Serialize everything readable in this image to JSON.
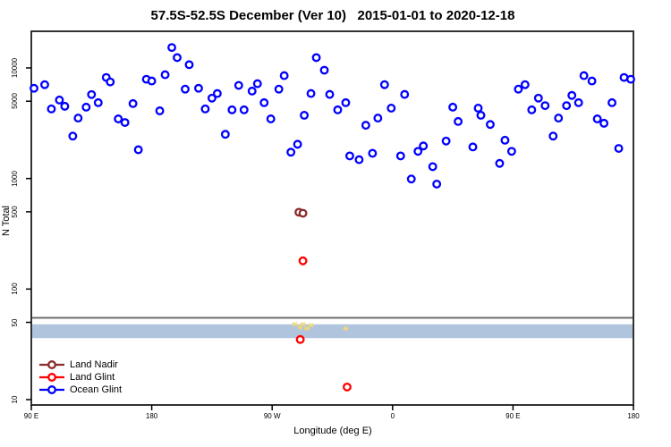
{
  "title": "57.5S-52.5S December (Ver 10)   2015-01-01 to 2020-12-18",
  "legend": {
    "items": [
      {
        "label": "Land Nadir",
        "color": "#8B2B2B"
      },
      {
        "label": "Land Glint",
        "color": "#FF0000"
      },
      {
        "label": "Ocean Glint",
        "color": "#0000FF"
      }
    ]
  },
  "chart_data": {
    "type": "scatter",
    "title": "57.5S-52.5S December (Ver 10)   2015-01-01 to 2020-12-18",
    "xlabel": "Longitude (deg E)",
    "ylabel": "N Total",
    "y_scale": "log10",
    "ylim": [
      9,
      20000
    ],
    "x_axis_note": "longitude axis runs eastward from 90E wrapping through 180, 90W, 0, 90E to 180; stored x = cumulative deg from 90",
    "xlim_deg": [
      90,
      540
    ],
    "x_ticks": [
      {
        "deg": 90,
        "label": "90 E"
      },
      {
        "deg": 180,
        "label": "180"
      },
      {
        "deg": 270,
        "label": "90 W"
      },
      {
        "deg": 360,
        "label": "0"
      },
      {
        "deg": 450,
        "label": "90 E"
      },
      {
        "deg": 540,
        "label": "180"
      }
    ],
    "y_ticks": [
      10000,
      5000,
      1000,
      500,
      100,
      50,
      10
    ],
    "grid": false,
    "hline": {
      "value": 55,
      "color": "#6e6e6e"
    },
    "band": {
      "from": 36,
      "to": 48,
      "color": "#B0C4DE"
    },
    "series": [
      {
        "name": "Ocean Glint",
        "color": "#0000FF",
        "marker": "open-circle",
        "points": [
          [
            92,
            6550
          ],
          [
            100,
            7060
          ],
          [
            105,
            4260
          ],
          [
            111,
            5130
          ],
          [
            115,
            4500
          ],
          [
            121,
            2420
          ],
          [
            125,
            3520
          ],
          [
            131,
            4420
          ],
          [
            135,
            5740
          ],
          [
            140,
            4850
          ],
          [
            146,
            8200
          ],
          [
            149,
            7470
          ],
          [
            155,
            3460
          ],
          [
            160,
            3210
          ],
          [
            166,
            4760
          ],
          [
            170,
            1820
          ],
          [
            176,
            7900
          ],
          [
            180,
            7620
          ],
          [
            186,
            4090
          ],
          [
            190,
            8680
          ],
          [
            195,
            15300
          ],
          [
            199,
            12400
          ],
          [
            205,
            6430
          ],
          [
            208,
            10700
          ],
          [
            215,
            6550
          ],
          [
            220,
            4260
          ],
          [
            225,
            5330
          ],
          [
            229,
            5870
          ],
          [
            235,
            2510
          ],
          [
            240,
            4180
          ],
          [
            245,
            6950
          ],
          [
            249,
            4180
          ],
          [
            255,
            6180
          ],
          [
            259,
            7200
          ],
          [
            264,
            4850
          ],
          [
            269,
            3460
          ],
          [
            275,
            6430
          ],
          [
            279,
            8520
          ],
          [
            284,
            1730
          ],
          [
            289,
            2040
          ],
          [
            294,
            3730
          ],
          [
            299,
            5870
          ],
          [
            303,
            12400
          ],
          [
            309,
            9540
          ],
          [
            313,
            5760
          ],
          [
            319,
            4180
          ],
          [
            325,
            4850
          ],
          [
            328,
            1600
          ],
          [
            335,
            1480
          ],
          [
            340,
            3030
          ],
          [
            345,
            1690
          ],
          [
            349,
            3520
          ],
          [
            354,
            7060
          ],
          [
            359,
            4330
          ],
          [
            366,
            1600
          ],
          [
            369,
            5760
          ],
          [
            374,
            990
          ],
          [
            379,
            1760
          ],
          [
            383,
            1970
          ],
          [
            390,
            1280
          ],
          [
            393,
            890
          ],
          [
            400,
            2180
          ],
          [
            405,
            4420
          ],
          [
            409,
            3280
          ],
          [
            420,
            1930
          ],
          [
            424,
            4330
          ],
          [
            426,
            3730
          ],
          [
            433,
            3080
          ],
          [
            440,
            1370
          ],
          [
            444,
            2220
          ],
          [
            449,
            1760
          ],
          [
            454,
            6430
          ],
          [
            459,
            7060
          ],
          [
            464,
            4180
          ],
          [
            469,
            5330
          ],
          [
            474,
            4560
          ],
          [
            480,
            2420
          ],
          [
            484,
            3520
          ],
          [
            490,
            4560
          ],
          [
            494,
            5640
          ],
          [
            499,
            4850
          ],
          [
            503,
            8520
          ],
          [
            509,
            7620
          ],
          [
            513,
            3460
          ],
          [
            518,
            3160
          ],
          [
            524,
            4850
          ],
          [
            529,
            1870
          ],
          [
            533,
            8200
          ],
          [
            538,
            7900
          ]
        ]
      },
      {
        "name": "Land Nadir",
        "color": "#8B2B2B",
        "marker": "open-circle",
        "points": [
          [
            290,
            495
          ],
          [
            293,
            485
          ]
        ]
      },
      {
        "name": "Land Glint",
        "color": "#FF0000",
        "marker": "open-circle",
        "points": [
          [
            293,
            180
          ],
          [
            291,
            35
          ],
          [
            326,
            13
          ]
        ]
      },
      {
        "name": "yellow-flag-marks",
        "color": "#EDD97A",
        "marker": "asterisk",
        "points": [
          [
            287,
            48
          ],
          [
            291,
            45
          ],
          [
            293,
            48
          ],
          [
            296,
            44
          ],
          [
            299,
            47
          ],
          [
            325,
            44
          ]
        ]
      }
    ]
  }
}
